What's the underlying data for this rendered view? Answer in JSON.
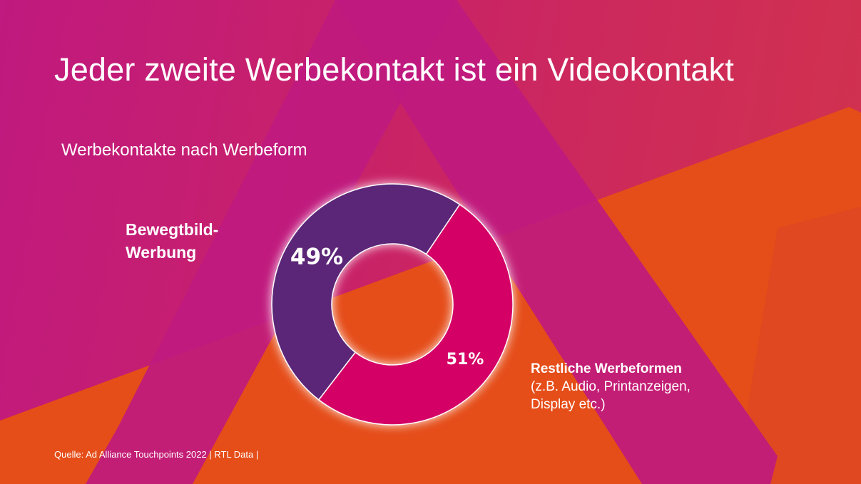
{
  "title": "Jeder zweite Werbekontakt ist ein Videokontakt",
  "subtitle": "Werbekontakte nach Werbeform",
  "source": "Quelle: Ad Alliance Touchpoints 2022 | RTL Data |",
  "labels": {
    "left": "Bewegtbild-\nWerbung",
    "right_title": "Restliche Werbeformen",
    "right_note": "(z.B. Audio, Printanzeigen,\nDisplay etc.)"
  },
  "chart_data": {
    "type": "pie",
    "title": "Werbekontakte nach Werbeform",
    "donut": true,
    "series": [
      {
        "category": "Bewegtbild-Werbung",
        "value": 49,
        "label": "49%",
        "color": "#5b2778"
      },
      {
        "category": "Restliche Werbeformen",
        "value": 51,
        "label": "51%",
        "color": "#d50566"
      }
    ]
  },
  "colors": {
    "background": "#c51d72",
    "orange_band": "#e54d19",
    "magenta_stripe": "#bf1a7f",
    "purple_segment": "#5b2778",
    "pink_segment": "#d50566"
  }
}
